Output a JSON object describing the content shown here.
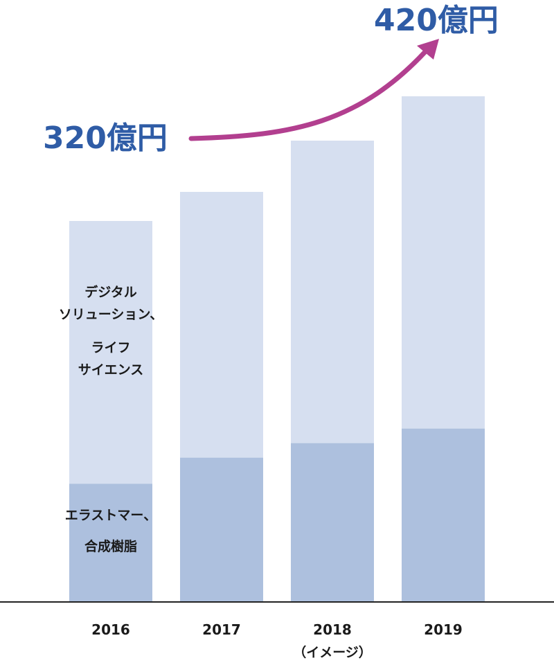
{
  "colors": {
    "upper_segment": "#d6dff0",
    "lower_segment": "#adc0de",
    "annotation_text": "#2f5ca6",
    "arrow": "#b23f8f",
    "axis": "#222222"
  },
  "chart_data": {
    "type": "bar",
    "stacked": true,
    "categories": [
      "2016",
      "2017",
      "2018",
      "2019"
    ],
    "category_sublabels": [
      "",
      "",
      "（イメージ）",
      ""
    ],
    "series": [
      {
        "name": "エラストマー、合成樹脂",
        "name_lines": [
          "エラストマー、",
          "合成樹脂"
        ],
        "values": [
          85.4,
          104.2,
          114.7,
          125.2
        ]
      },
      {
        "name": "デジタル ソリューション、ライフ サイエンス",
        "name_lines": [
          "デジタル",
          "ソリューション、",
          "ライフ",
          "サイエンス"
        ],
        "values": [
          189.6,
          191.8,
          218.3,
          239.8
        ]
      }
    ],
    "annotations": {
      "start_label": "320億円",
      "end_label": "420億円"
    },
    "ylim": [
      0,
      500
    ],
    "grid": false,
    "legend": "none"
  }
}
